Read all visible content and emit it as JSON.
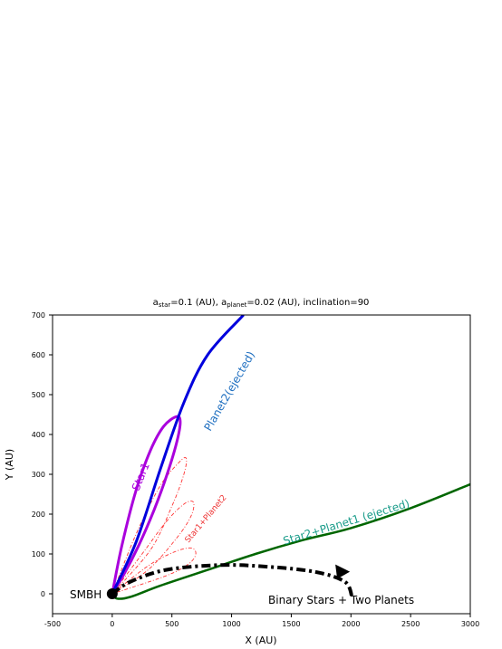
{
  "chart_data": {
    "type": "line",
    "title": {
      "a_star_prefix": "a",
      "a_star_sub": "star",
      "a_star_value": "=0.1 (AU), a",
      "a_planet_sub": "planet",
      "a_planet_value": "=0.02 (AU), inclination=90"
    },
    "xlabel": "X (AU)",
    "ylabel": "Y (AU)",
    "xlim": [
      -500,
      3000
    ],
    "ylim": [
      -50,
      700
    ],
    "xticks": [
      "-500",
      "0",
      "500",
      "1000",
      "1500",
      "2000",
      "2500",
      "3000"
    ],
    "xtick_values": [
      -500,
      0,
      500,
      1000,
      1500,
      2000,
      2500,
      3000
    ],
    "yticks": [
      "0",
      "100",
      "200",
      "300",
      "400",
      "500",
      "600",
      "700"
    ],
    "ytick_values": [
      0,
      100,
      200,
      300,
      400,
      500,
      600,
      700
    ],
    "grid": false,
    "colors": {
      "star1": "#aa00dd",
      "planet2": "#0000dd",
      "star2_planet1": "#006600",
      "star1_planet2": "#ff3333",
      "arrow": "#000000",
      "planet2_label": "#1f6fc0",
      "star2_label": "#1a9c8a",
      "star1_label": "#aa00dd",
      "star1p2_label": "#ee3333"
    },
    "series": [
      {
        "name": "Planet2(ejected)",
        "points": [
          [
            0,
            0
          ],
          [
            200,
            130
          ],
          [
            400,
            310
          ],
          [
            600,
            480
          ],
          [
            800,
            600
          ],
          [
            1100,
            700
          ]
        ]
      },
      {
        "name": "Star2+Planet1 (ejected)",
        "points": [
          [
            0,
            0
          ],
          [
            40,
            -12
          ],
          [
            150,
            -8
          ],
          [
            400,
            20
          ],
          [
            800,
            60
          ],
          [
            1200,
            100
          ],
          [
            1600,
            135
          ],
          [
            2000,
            165
          ],
          [
            2500,
            215
          ],
          [
            3000,
            275
          ]
        ]
      }
    ],
    "star1_orbit": {
      "name": "Star1",
      "loop": [
        [
          0,
          0
        ],
        [
          80,
          120
        ],
        [
          200,
          260
        ],
        [
          320,
          360
        ],
        [
          430,
          420
        ],
        [
          540,
          445
        ],
        [
          570,
          430
        ],
        [
          540,
          380
        ],
        [
          460,
          300
        ],
        [
          350,
          210
        ],
        [
          220,
          120
        ],
        [
          100,
          50
        ],
        [
          0,
          0
        ]
      ]
    },
    "star1_planet2_loops": {
      "name": "Star1+Planet2",
      "loops": [
        [
          [
            0,
            0
          ],
          [
            200,
            150
          ],
          [
            400,
            270
          ],
          [
            560,
            330
          ],
          [
            620,
            340
          ],
          [
            600,
            300
          ],
          [
            500,
            220
          ],
          [
            320,
            110
          ],
          [
            0,
            0
          ]
        ],
        [
          [
            0,
            0
          ],
          [
            250,
            100
          ],
          [
            450,
            180
          ],
          [
            600,
            225
          ],
          [
            680,
            230
          ],
          [
            660,
            195
          ],
          [
            540,
            140
          ],
          [
            300,
            60
          ],
          [
            0,
            0
          ]
        ],
        [
          [
            0,
            0
          ],
          [
            300,
            70
          ],
          [
            520,
            105
          ],
          [
            660,
            115
          ],
          [
            700,
            100
          ],
          [
            640,
            75
          ],
          [
            450,
            45
          ],
          [
            0,
            0
          ]
        ]
      ]
    },
    "binary_arrow": {
      "points": [
        [
          0,
          0
        ],
        [
          150,
          30
        ],
        [
          450,
          60
        ],
        [
          900,
          72
        ],
        [
          1300,
          68
        ],
        [
          1700,
          55
        ],
        [
          1950,
          30
        ],
        [
          2010,
          -10
        ]
      ],
      "head_at": [
        1900,
        60
      ]
    },
    "annotations": {
      "smbh": "SMBH",
      "star1": "Star1",
      "planet2": "Planet2(ejected)",
      "star1_planet2": "Star1+Planet2",
      "star2_planet1": "Star2+Planet1 (ejected)",
      "binary": "Binary Stars + Two Planets"
    }
  }
}
